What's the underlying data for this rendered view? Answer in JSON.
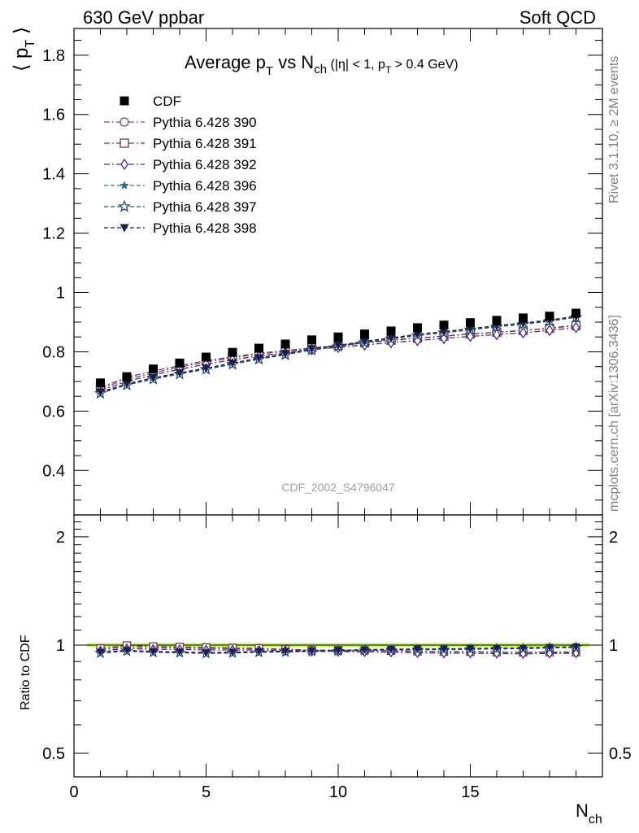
{
  "header": {
    "left": "630 GeV ppbar",
    "right": "Soft QCD"
  },
  "side_labels": {
    "rivet": "Rivet 3.1.10, ≥ 2M events",
    "mcplots": "mcplots.cern.ch [arXiv:1306.3436]"
  },
  "analysis_label": "CDF_2002_S4796047",
  "chart_data": {
    "type": "scatter",
    "title": {
      "main": "Average p",
      "main_sub": "T",
      "vs": " vs N",
      "vs_sub": "ch",
      "cut_a": " (|η| < 1, p",
      "cut_sub": "T",
      "cut_b": " > 0.4 GeV)"
    },
    "ylabel": {
      "text": "⟨ p",
      "sub": "T",
      "close": " ⟩"
    },
    "xlabel": {
      "text": "N",
      "sub": "ch"
    },
    "ratio_ylabel": "Ratio to CDF",
    "xlim": [
      0,
      20
    ],
    "ylim": [
      0.25,
      1.89
    ],
    "ratio_ylim": [
      0.43,
      2.3
    ],
    "ratio_scale": "log",
    "xticks": [
      "0",
      "5",
      "10",
      "15"
    ],
    "yticks": [
      "0.4",
      "0.6",
      "0.8",
      "1",
      "1.2",
      "1.4",
      "1.6",
      "1.8"
    ],
    "ratio_yticks": [
      "0.5",
      "1",
      "2"
    ],
    "legend_position": "top-left",
    "x": [
      1,
      2,
      3,
      4,
      5,
      6,
      7,
      8,
      9,
      10,
      11,
      12,
      13,
      14,
      15,
      16,
      17,
      18,
      19
    ],
    "series": [
      {
        "name": "CDF",
        "color": "#000000",
        "marker": "filled-square",
        "line": "none",
        "values": [
          0.695,
          0.716,
          0.742,
          0.762,
          0.782,
          0.798,
          0.812,
          0.826,
          0.84,
          0.85,
          0.86,
          0.87,
          0.881,
          0.89,
          0.898,
          0.906,
          0.914,
          0.92,
          0.93
        ]
      },
      {
        "name": "Pythia 6.428 390",
        "color": "#7a4a8c",
        "marker": "open-circle",
        "line": "dash-dot",
        "values": [
          0.676,
          0.707,
          0.729,
          0.748,
          0.765,
          0.78,
          0.792,
          0.802,
          0.812,
          0.82,
          0.83,
          0.838,
          0.846,
          0.853,
          0.86,
          0.866,
          0.872,
          0.88,
          0.89
        ]
      },
      {
        "name": "Pythia 6.428 391",
        "color": "#6b3a4d",
        "marker": "open-square",
        "line": "dash-dot",
        "values": [
          0.68,
          0.714,
          0.735,
          0.753,
          0.77,
          0.783,
          0.795,
          0.804,
          0.813,
          0.822,
          0.831,
          0.839,
          0.846,
          0.853,
          0.86,
          0.866,
          0.872,
          0.879,
          0.888
        ]
      },
      {
        "name": "Pythia 6.428 392",
        "color": "#4b2a80",
        "marker": "open-diamond",
        "line": "dash-dot",
        "values": [
          0.67,
          0.7,
          0.722,
          0.741,
          0.758,
          0.773,
          0.786,
          0.797,
          0.807,
          0.815,
          0.823,
          0.831,
          0.838,
          0.845,
          0.852,
          0.858,
          0.864,
          0.872,
          0.882
        ]
      },
      {
        "name": "Pythia 6.428 396",
        "color": "#3d6b85",
        "marker": "filled-star",
        "line": "dash",
        "values": [
          0.662,
          0.69,
          0.71,
          0.727,
          0.743,
          0.76,
          0.777,
          0.792,
          0.808,
          0.82,
          0.833,
          0.845,
          0.857,
          0.866,
          0.876,
          0.886,
          0.895,
          0.905,
          0.918
        ]
      },
      {
        "name": "Pythia 6.428 397",
        "color": "#2b4d6e",
        "marker": "open-star",
        "line": "dash",
        "values": [
          0.66,
          0.688,
          0.708,
          0.725,
          0.741,
          0.758,
          0.775,
          0.79,
          0.806,
          0.818,
          0.831,
          0.843,
          0.855,
          0.864,
          0.874,
          0.884,
          0.893,
          0.903,
          0.916
        ]
      },
      {
        "name": "Pythia 6.428 398",
        "color": "#1a1f4d",
        "marker": "filled-triangle-down",
        "line": "dash",
        "values": [
          0.664,
          0.692,
          0.712,
          0.729,
          0.745,
          0.762,
          0.779,
          0.794,
          0.81,
          0.822,
          0.835,
          0.847,
          0.859,
          0.868,
          0.878,
          0.888,
          0.897,
          0.907,
          0.92
        ]
      }
    ],
    "reference_band_color": "#c8f56a"
  }
}
